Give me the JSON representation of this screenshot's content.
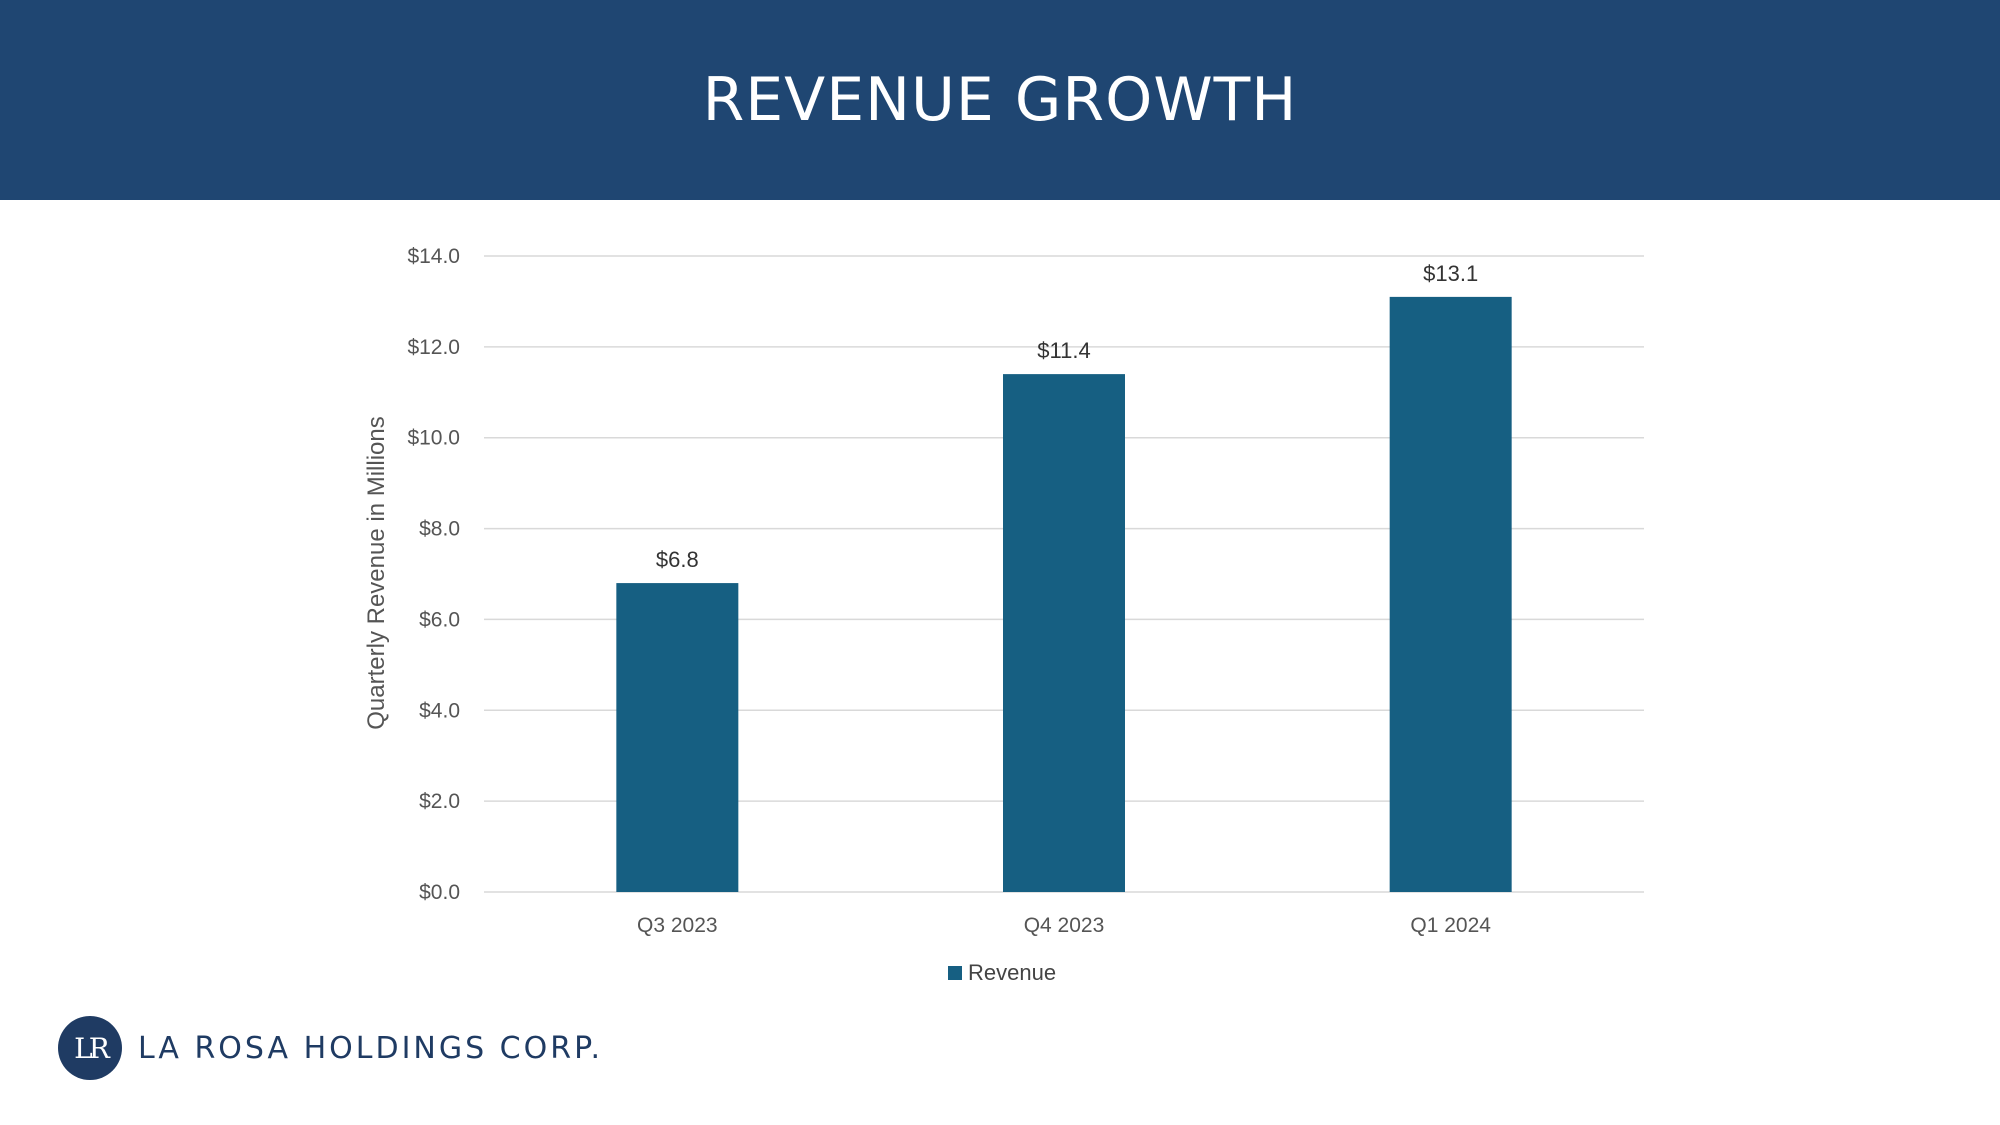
{
  "slide": {
    "title": "REVENUE GROWTH",
    "company": "LA ROSA HOLDINGS CORP.",
    "logo_text": "LR"
  },
  "colors": {
    "header": "#1f4672",
    "bar": "#165f82",
    "brand": "#1f3b63"
  },
  "chart_data": {
    "type": "bar",
    "title": "",
    "categories": [
      "Q3 2023",
      "Q4 2023",
      "Q1 2024"
    ],
    "series": [
      {
        "name": "Revenue",
        "values": [
          6.8,
          11.4,
          13.1
        ],
        "data_labels": [
          "$6.8",
          "$11.4",
          "$13.1"
        ]
      }
    ],
    "xlabel": "",
    "ylabel": "Quarterly Revenue in Millions",
    "ylim": [
      0,
      14
    ],
    "yticks": [
      0,
      2,
      4,
      6,
      8,
      10,
      12,
      14
    ],
    "ytick_labels": [
      "$0.0",
      "$2.0",
      "$4.0",
      "$6.0",
      "$8.0",
      "$10.0",
      "$12.0",
      "$14.0"
    ],
    "grid": true,
    "legend": "bottom-center"
  }
}
